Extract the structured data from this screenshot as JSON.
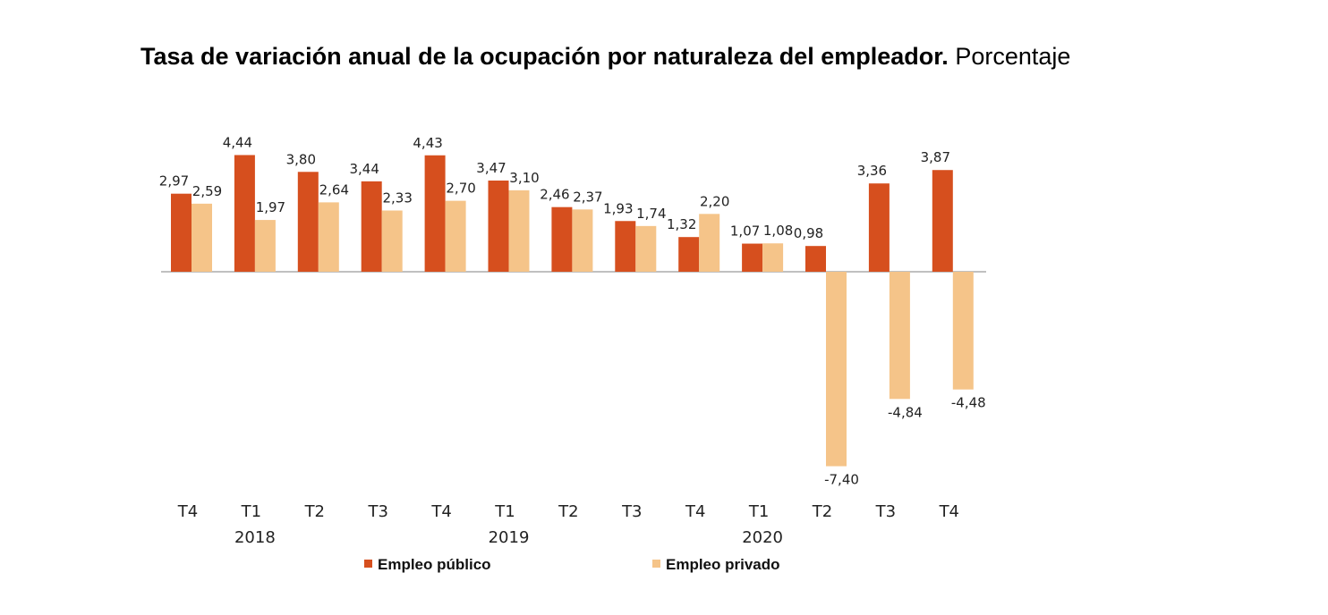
{
  "chart_data": {
    "type": "bar",
    "title": "Tasa de variación anual de la ocupación por naturaleza del empleador.",
    "subtitle": "Porcentaje",
    "categories": [
      "T4",
      "T1",
      "T2",
      "T3",
      "T4",
      "T1",
      "T2",
      "T3",
      "T4",
      "T1",
      "T2",
      "T3",
      "T4"
    ],
    "year_labels": [
      {
        "label": "2018",
        "category_index": 1
      },
      {
        "label": "2019",
        "category_index": 5
      },
      {
        "label": "2020",
        "category_index": 9
      }
    ],
    "series": [
      {
        "name": "Empleo público",
        "color": "#D64F1E",
        "values": [
          2.97,
          4.44,
          3.8,
          3.44,
          4.43,
          3.47,
          2.46,
          1.93,
          1.32,
          1.07,
          0.98,
          3.36,
          3.87
        ],
        "labels": [
          "2,97",
          "4,44",
          "3,80",
          "3,44",
          "4,43",
          "3,47",
          "2,46",
          "1,93",
          "1,32",
          "1,07",
          "0,98",
          "3,36",
          "3,87"
        ]
      },
      {
        "name": "Empleo privado",
        "color": "#F5C489",
        "values": [
          2.59,
          1.97,
          2.64,
          2.33,
          2.7,
          3.1,
          2.37,
          1.74,
          2.2,
          1.08,
          -7.4,
          -4.84,
          -4.48
        ],
        "labels": [
          "2,59",
          "1,97",
          "2,64",
          "2,33",
          "2,70",
          "3,10",
          "2,37",
          "1,74",
          "2,20",
          "1,08",
          "-7,40",
          "-4,84",
          "-4,48"
        ]
      }
    ],
    "legend_position": "bottom",
    "grid": false
  }
}
